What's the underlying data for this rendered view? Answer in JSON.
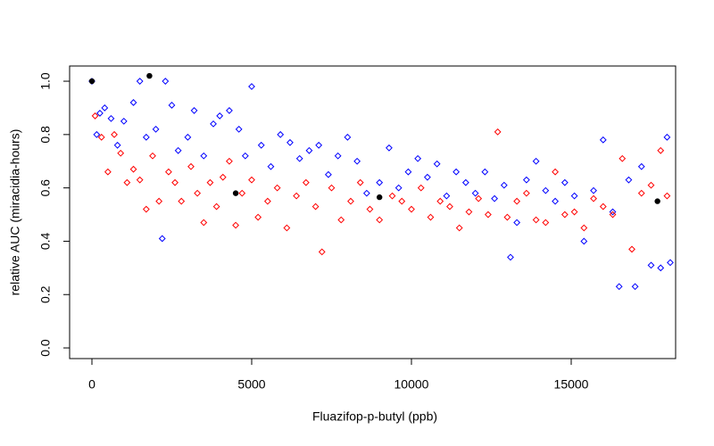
{
  "chart_data": {
    "type": "scatter",
    "x_label": "Fluazifop-p-butyl (ppb)",
    "y_label": "relative AUC (miracidia-hours)",
    "xlim": [
      -698,
      18268
    ],
    "xticks": [
      0,
      5000,
      10000,
      15000
    ],
    "ylim": [
      -0.04,
      1.057
    ],
    "yticks": [
      {
        "value": 0,
        "label": "0.0"
      },
      0.2,
      0.4,
      0.6,
      0.8,
      {
        "value": 1,
        "label": "1.0"
      }
    ],
    "grid": false,
    "series": [
      {
        "color": "#0000ff",
        "marker": "diamond",
        "x": [
          0,
          150,
          250,
          400,
          600,
          800,
          1000,
          1300,
          1500,
          1700,
          2000,
          2200,
          2300,
          2500,
          2700,
          3000,
          3200,
          3500,
          3800,
          4000,
          4300,
          4600,
          4800,
          5000,
          5300,
          5600,
          5900,
          6200,
          6500,
          6800,
          7100,
          7400,
          7700,
          8000,
          8300,
          8600,
          9000,
          9300,
          9600,
          9900,
          10200,
          10500,
          10800,
          11100,
          11400,
          11700,
          12000,
          12300,
          12600,
          12900,
          13100,
          13300,
          13600,
          13900,
          14200,
          14500,
          14800,
          15100,
          15400,
          15700,
          16000,
          16300,
          16500,
          16800,
          17000,
          17200,
          17500,
          17800,
          18000,
          18100
        ],
        "values": [
          1.0,
          0.8,
          0.88,
          0.9,
          0.86,
          0.76,
          0.85,
          0.92,
          1.0,
          0.79,
          0.82,
          0.41,
          1.0,
          0.91,
          0.74,
          0.79,
          0.89,
          0.72,
          0.84,
          0.87,
          0.89,
          0.82,
          0.72,
          0.98,
          0.76,
          0.68,
          0.8,
          0.77,
          0.71,
          0.74,
          0.76,
          0.65,
          0.72,
          0.79,
          0.7,
          0.58,
          0.62,
          0.75,
          0.6,
          0.66,
          0.71,
          0.64,
          0.69,
          0.57,
          0.66,
          0.62,
          0.58,
          0.66,
          0.56,
          0.61,
          0.34,
          0.47,
          0.63,
          0.7,
          0.59,
          0.55,
          0.62,
          0.57,
          0.4,
          0.59,
          0.78,
          0.51,
          0.23,
          0.63,
          0.23,
          0.68,
          0.31,
          0.3,
          0.79,
          0.32
        ]
      },
      {
        "color": "#ff0000",
        "marker": "diamond",
        "x": [
          100,
          300,
          500,
          700,
          900,
          1100,
          1300,
          1500,
          1700,
          1900,
          2100,
          2400,
          2600,
          2800,
          3100,
          3300,
          3500,
          3700,
          3900,
          4100,
          4300,
          4500,
          4700,
          5000,
          5200,
          5500,
          5800,
          6100,
          6400,
          6700,
          7000,
          7200,
          7500,
          7800,
          8100,
          8400,
          8700,
          9000,
          9400,
          9700,
          10000,
          10300,
          10600,
          10900,
          11200,
          11500,
          11800,
          12100,
          12400,
          12700,
          13000,
          13300,
          13600,
          13900,
          14200,
          14500,
          14800,
          15100,
          15400,
          15700,
          16000,
          16300,
          16600,
          16900,
          17200,
          17500,
          17800,
          18000
        ],
        "values": [
          0.87,
          0.79,
          0.66,
          0.8,
          0.73,
          0.62,
          0.67,
          0.63,
          0.52,
          0.72,
          0.55,
          0.66,
          0.62,
          0.55,
          0.68,
          0.58,
          0.47,
          0.62,
          0.53,
          0.64,
          0.7,
          0.46,
          0.58,
          0.63,
          0.49,
          0.55,
          0.6,
          0.45,
          0.57,
          0.62,
          0.53,
          0.36,
          0.6,
          0.48,
          0.55,
          0.62,
          0.52,
          0.48,
          0.57,
          0.55,
          0.52,
          0.6,
          0.49,
          0.55,
          0.53,
          0.45,
          0.51,
          0.56,
          0.5,
          0.81,
          0.49,
          0.55,
          0.58,
          0.48,
          0.47,
          0.66,
          0.5,
          0.51,
          0.45,
          0.56,
          0.53,
          0.5,
          0.71,
          0.37,
          0.58,
          0.61,
          0.74,
          0.57
        ]
      },
      {
        "color": "#000000",
        "marker": "circle",
        "x": [
          0,
          1800,
          4500,
          9000,
          17700
        ],
        "values": [
          1.0,
          1.02,
          0.58,
          0.565,
          0.55
        ]
      }
    ]
  }
}
